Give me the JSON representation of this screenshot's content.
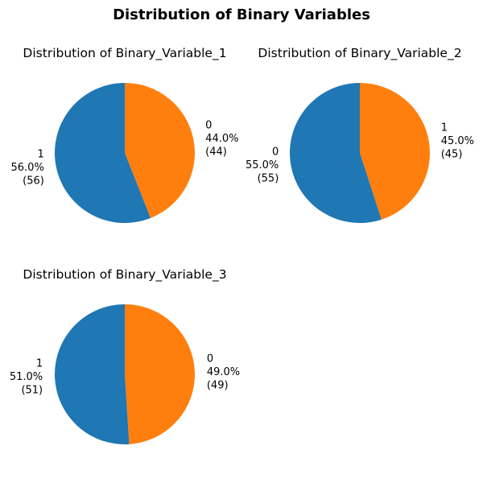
{
  "figure": {
    "title": "Distribution of Binary Variables"
  },
  "chart_data": [
    {
      "type": "pie",
      "title": "Distribution of Binary_Variable_1",
      "slices": [
        {
          "label": "0",
          "value": 44,
          "percent": "44.0%",
          "count": "(44)",
          "color": "#ff7f0e"
        },
        {
          "label": "1",
          "value": 56,
          "percent": "56.0%",
          "count": "(56)",
          "color": "#1f77b4"
        }
      ]
    },
    {
      "type": "pie",
      "title": "Distribution of Binary_Variable_2",
      "slices": [
        {
          "label": "1",
          "value": 45,
          "percent": "45.0%",
          "count": "(45)",
          "color": "#ff7f0e"
        },
        {
          "label": "0",
          "value": 55,
          "percent": "55.0%",
          "count": "(55)",
          "color": "#1f77b4"
        }
      ]
    },
    {
      "type": "pie",
      "title": "Distribution of Binary_Variable_3",
      "slices": [
        {
          "label": "0",
          "value": 49,
          "percent": "49.0%",
          "count": "(49)",
          "color": "#ff7f0e"
        },
        {
          "label": "1",
          "value": 51,
          "percent": "51.0%",
          "count": "(51)",
          "color": "#1f77b4"
        }
      ]
    }
  ]
}
